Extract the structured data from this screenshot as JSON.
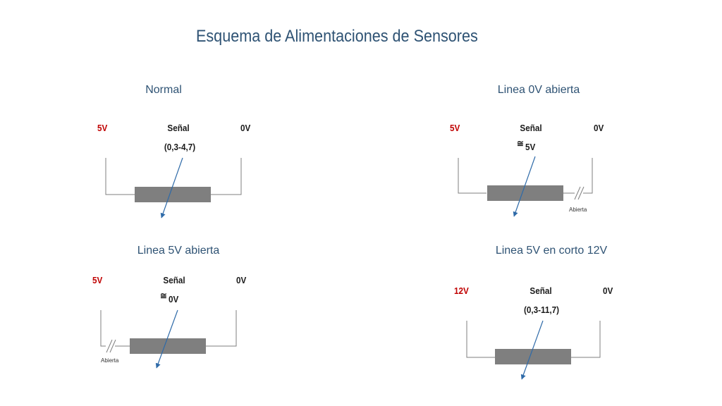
{
  "title": "Esquema de Alimentaciones de Sensores",
  "colors": {
    "title": "#2f5374",
    "supply": "#c00000",
    "label": "#1a1a1a",
    "wire": "#7f7f7f",
    "resistor": "#7f7f7f",
    "wiper": "#2e6aa8"
  },
  "panels": {
    "normal": {
      "title": "Normal",
      "supply": "5V",
      "signal_label": "Señal",
      "signal_value": "(0,3-4,7)",
      "ground": "0V"
    },
    "open_0v": {
      "title": "Linea 0V abierta",
      "supply": "5V",
      "signal_label": "Señal",
      "approx_symbol": "≅",
      "signal_value": "5V",
      "ground": "0V",
      "break_label": "Abierta"
    },
    "open_5v": {
      "title": "Linea 5V abierta",
      "supply": "5V",
      "signal_label": "Señal",
      "approx_symbol": "≅",
      "signal_value": "0V",
      "ground": "0V",
      "break_label": "Abierta"
    },
    "short_12v": {
      "title": "Linea 5V en corto 12V",
      "supply": "12V",
      "signal_label": "Señal",
      "signal_value": "(0,3-11,7)",
      "ground": "0V"
    }
  }
}
